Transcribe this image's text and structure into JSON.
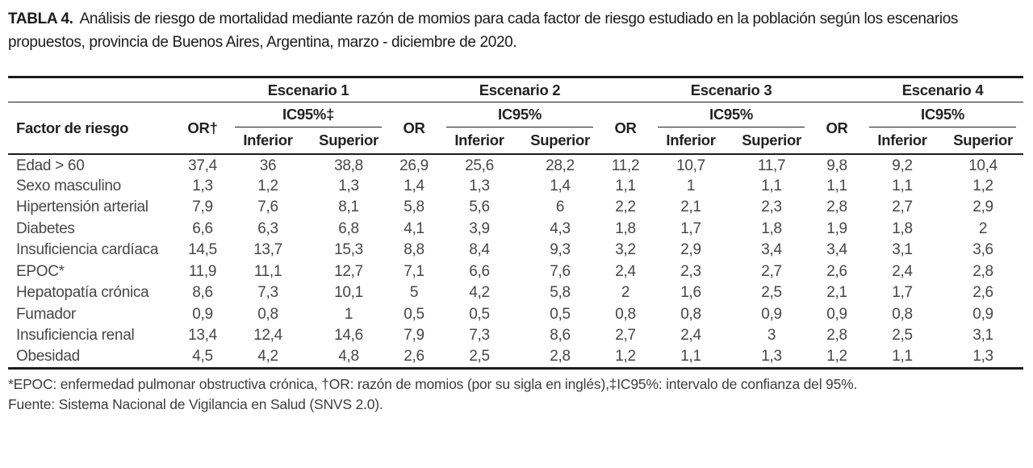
{
  "title": {
    "label": "TABLA 4.",
    "text": "Análisis de riesgo de mortalidad mediante razón de momios para cada factor de riesgo estudiado en la población según los escenarios propuestos, provincia de Buenos Aires, Argentina, marzo - diciembre de 2020."
  },
  "table": {
    "header": {
      "factor": "Factor de riesgo",
      "or_first": "OR†",
      "or": "OR",
      "ic95_first": "IC95%‡",
      "ic95": "IC95%",
      "inferior": "Inferior",
      "superior": "Superior",
      "scenarios": [
        "Escenario 1",
        "Escenario 2",
        "Escenario 3",
        "Escenario 4"
      ]
    },
    "rows": [
      {
        "label": "Edad > 60",
        "values": [
          "37,4",
          "36",
          "38,8",
          "26,9",
          "25,6",
          "28,2",
          "11,2",
          "10,7",
          "11,7",
          "9,8",
          "9,2",
          "10,4"
        ]
      },
      {
        "label": "Sexo masculino",
        "values": [
          "1,3",
          "1,2",
          "1,3",
          "1,4",
          "1,3",
          "1,4",
          "1,1",
          "1",
          "1,1",
          "1,1",
          "1,1",
          "1,2"
        ]
      },
      {
        "label": "Hipertensión arterial",
        "values": [
          "7,9",
          "7,6",
          "8,1",
          "5,8",
          "5,6",
          "6",
          "2,2",
          "2,1",
          "2,3",
          "2,8",
          "2,7",
          "2,9"
        ]
      },
      {
        "label": "Diabetes",
        "values": [
          "6,6",
          "6,3",
          "6,8",
          "4,1",
          "3,9",
          "4,3",
          "1,8",
          "1,7",
          "1,8",
          "1,9",
          "1,8",
          "2"
        ]
      },
      {
        "label": "Insuficiencia cardíaca",
        "values": [
          "14,5",
          "13,7",
          "15,3",
          "8,8",
          "8,4",
          "9,3",
          "3,2",
          "2,9",
          "3,4",
          "3,4",
          "3,1",
          "3,6"
        ]
      },
      {
        "label": "EPOC*",
        "values": [
          "11,9",
          "11,1",
          "12,7",
          "7,1",
          "6,6",
          "7,6",
          "2,4",
          "2,3",
          "2,7",
          "2,6",
          "2,4",
          "2,8"
        ]
      },
      {
        "label": "Hepatopatía crónica",
        "values": [
          "8,6",
          "7,3",
          "10,1",
          "5",
          "4,2",
          "5,8",
          "2",
          "1,6",
          "2,5",
          "2,1",
          "1,7",
          "2,6"
        ]
      },
      {
        "label": "Fumador",
        "values": [
          "0,9",
          "0,8",
          "1",
          "0,5",
          "0,5",
          "0,5",
          "0,8",
          "0,8",
          "0,9",
          "0,9",
          "0,8",
          "0,9"
        ]
      },
      {
        "label": "Insuficiencia renal",
        "values": [
          "13,4",
          "12,4",
          "14,6",
          "7,9",
          "7,3",
          "8,6",
          "2,7",
          "2,4",
          "3",
          "2,8",
          "2,5",
          "3,1"
        ]
      },
      {
        "label": "Obesidad",
        "values": [
          "4,5",
          "4,2",
          "4,8",
          "2,6",
          "2,5",
          "2,8",
          "1,2",
          "1,1",
          "1,3",
          "1,2",
          "1,1",
          "1,3"
        ]
      }
    ]
  },
  "footnotes": {
    "definitions": "*EPOC: enfermedad pulmonar obstructiva crónica, †OR: razón de momios (por su sigla en inglés),‡IC95%: intervalo de confianza del 95%.",
    "source": "Fuente: Sistema Nacional de Vigilancia en Salud (SNVS 2.0)."
  },
  "colors": {
    "rule": "#1c1c1c",
    "heading": "#222222",
    "body": "#474747",
    "background": "#ffffff"
  }
}
